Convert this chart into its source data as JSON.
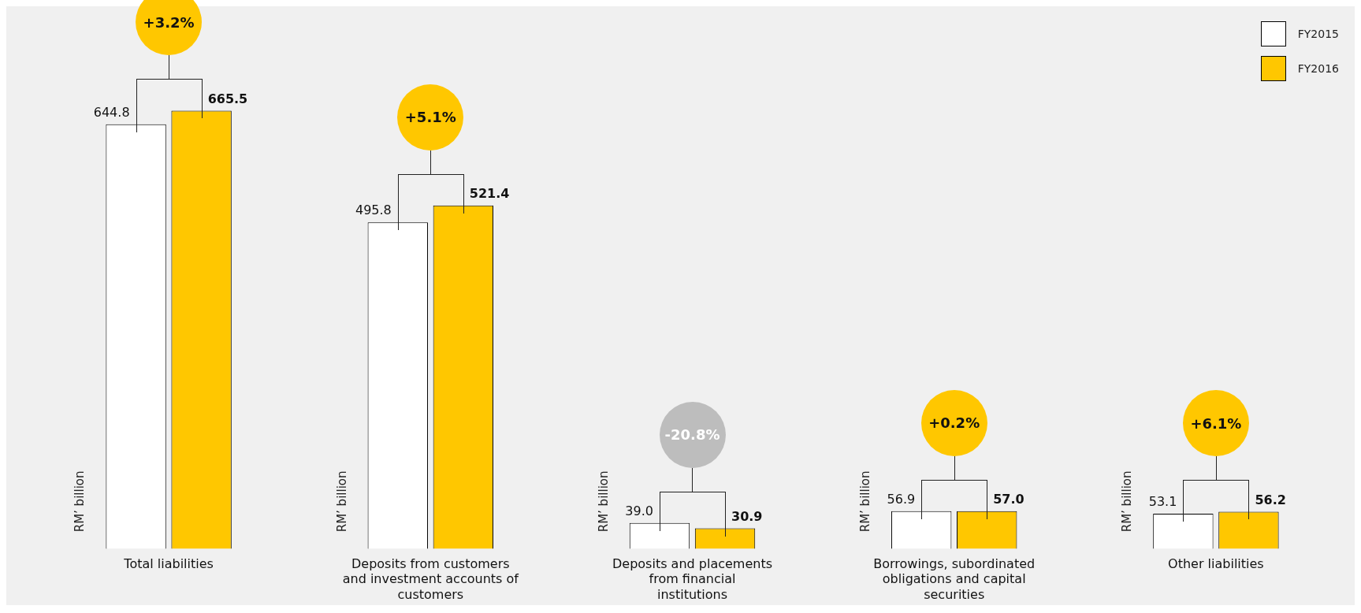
{
  "chart_data": {
    "type": "bar",
    "ylabel": "RM’ billion",
    "categories": [
      "Total liabilities",
      "Deposits from customers and investment accounts of customers",
      "Deposits and placements from financial institutions",
      "Borrowings, subordinated obligations and capital securities",
      "Other liabilities"
    ],
    "series": [
      {
        "name": "FY2015",
        "color": "#ffffff",
        "values": [
          644.8,
          495.8,
          39.0,
          56.9,
          53.1
        ],
        "value_labels": [
          "644.8",
          "495.8",
          "39.0",
          "56.9",
          "53.1"
        ]
      },
      {
        "name": "FY2016",
        "color": "#ffc700",
        "values": [
          665.5,
          521.4,
          30.9,
          57.0,
          56.2
        ],
        "value_labels": [
          "665.5",
          "521.4",
          "30.9",
          "57.0",
          "56.2"
        ]
      }
    ],
    "legend": "top right",
    "grid": false,
    "annotations": [
      "+3.2%",
      "+5.1%",
      "-20.8%",
      "+0.2%",
      "+6.1%"
    ]
  }
}
